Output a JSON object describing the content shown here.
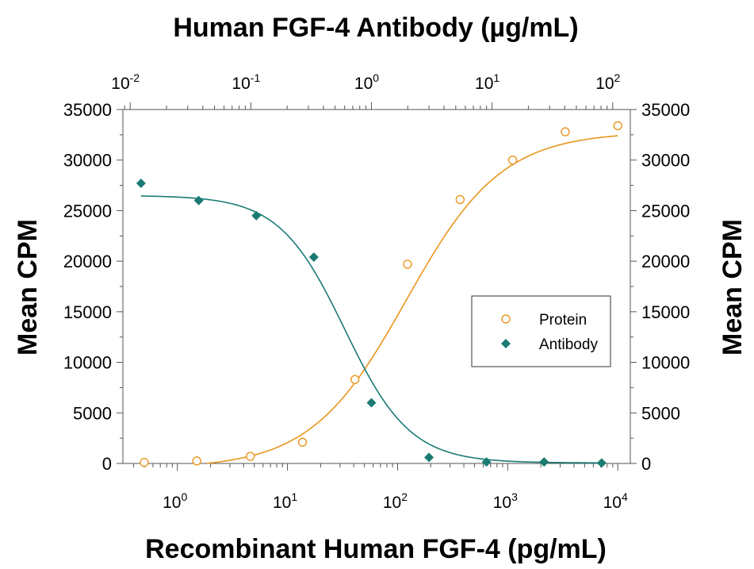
{
  "chart_data": {
    "type": "scatter",
    "title": "Human FGF-4 Antibody (µg/mL)",
    "xlabel": "Recombinant Human FGF-4 (pg/mL)",
    "ylabel": "Mean CPM",
    "ylabel_right": "Mean CPM",
    "x_scale": "log",
    "x_bottom_range": [
      0.32,
      13000
    ],
    "x_bottom_ticks": [
      {
        "value": 1,
        "base": "10",
        "exp": "0"
      },
      {
        "value": 10,
        "base": "10",
        "exp": "1"
      },
      {
        "value": 100,
        "base": "10",
        "exp": "2"
      },
      {
        "value": 1000,
        "base": "10",
        "exp": "3"
      },
      {
        "value": 10000,
        "base": "10",
        "exp": "4"
      }
    ],
    "x_top_range": [
      0.0087,
      140
    ],
    "x_top_ticks": [
      {
        "value": 0.01,
        "base": "10",
        "exp": "-2"
      },
      {
        "value": 0.1,
        "base": "10",
        "exp": "-1"
      },
      {
        "value": 1,
        "base": "10",
        "exp": "0"
      },
      {
        "value": 10,
        "base": "10",
        "exp": "1"
      },
      {
        "value": 100,
        "base": "10",
        "exp": "2"
      }
    ],
    "ylim": [
      0,
      35000
    ],
    "y_ticks": [
      "0",
      "5000",
      "10000",
      "15000",
      "20000",
      "25000",
      "30000",
      "35000"
    ],
    "grid": false,
    "legend_position": "center-right",
    "series": [
      {
        "name": "Protein",
        "axis": "bottom",
        "marker": "open-circle",
        "color": "#e8961f",
        "x": [
          0.5,
          1.5,
          4.6,
          13.7,
          41,
          123,
          370,
          1111,
          3333,
          10000
        ],
        "y": [
          100,
          250,
          700,
          2100,
          8300,
          19700,
          26100,
          30000,
          32800,
          33400
        ],
        "fit": {
          "bottom": -500,
          "top": 32800,
          "ec50": 120,
          "hill": 1.0
        }
      },
      {
        "name": "Antibody",
        "axis": "top",
        "marker": "filled-diamond",
        "color": "#1a7b74",
        "x": [
          0.0123,
          0.037,
          0.111,
          0.333,
          1.0,
          3.0,
          9.0,
          27,
          81
        ],
        "y": [
          27700,
          26000,
          24500,
          20400,
          6000,
          600,
          150,
          150,
          50
        ],
        "fit": {
          "bottom": 50,
          "top": 26500,
          "ec50": 0.6,
          "hill": 1.6
        }
      }
    ]
  }
}
